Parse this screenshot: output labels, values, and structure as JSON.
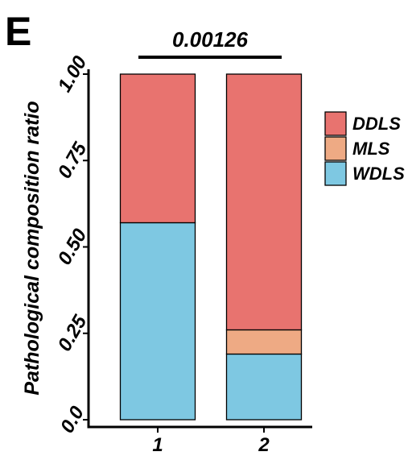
{
  "panel_label": "E",
  "chart_data": {
    "type": "bar",
    "stacked": true,
    "normalized": true,
    "categories": [
      "1",
      "2"
    ],
    "series": [
      {
        "name": "WDLS",
        "values": [
          0.57,
          0.19
        ]
      },
      {
        "name": "MLS",
        "values": [
          0.0,
          0.07
        ]
      },
      {
        "name": "DDLS",
        "values": [
          0.43,
          0.74
        ]
      }
    ],
    "legend_order": [
      "DDLS",
      "MLS",
      "WDLS"
    ],
    "title": "",
    "xlabel": "",
    "ylabel": "Pathological composition ratio",
    "ylim": [
      0,
      1
    ],
    "yticks": [
      0,
      0.25,
      0.5,
      0.75,
      1.0
    ],
    "ytick_labels": [
      "0.0",
      "0.25",
      "0.50",
      "0.75",
      "1.00"
    ],
    "significance": {
      "between": [
        "1",
        "2"
      ],
      "label": "0.00126"
    },
    "legend_placement": "right",
    "grid": false,
    "colors": {
      "DDLS": "#e8736f",
      "MLS": "#eeaa84",
      "WDLS": "#7ec8e2"
    }
  }
}
